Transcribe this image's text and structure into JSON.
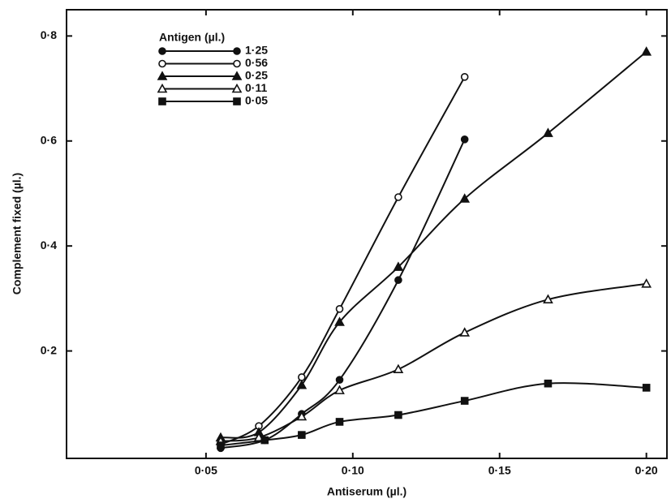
{
  "chart_data": {
    "type": "line",
    "xlabel": "Antiserum (µl.)",
    "ylabel": "Complement fixed (µl.)",
    "legend_title": "Antigen (µl.)",
    "legend": "upper left",
    "xlim": [
      0.0025,
      0.207
    ],
    "ylim": [
      0,
      0.85
    ],
    "xticks": [
      {
        "value": 0.05,
        "label": "0·05"
      },
      {
        "value": 0.1,
        "label": "0·10"
      },
      {
        "value": 0.15,
        "label": "0·15"
      },
      {
        "value": 0.2,
        "label": "0·20"
      }
    ],
    "yticks": [
      {
        "value": 0.2,
        "label": "0·2"
      },
      {
        "value": 0.4,
        "label": "0·4"
      },
      {
        "value": 0.6,
        "label": "0·6"
      },
      {
        "value": 0.8,
        "label": "0·8"
      }
    ],
    "series": [
      {
        "name": "1·25",
        "color": "#111111",
        "marker": "filled-circle",
        "x": [
          0.055,
          0.07,
          0.0826,
          0.0955,
          0.1155,
          0.1381
        ],
        "values": [
          0.015,
          0.03,
          0.08,
          0.145,
          0.335,
          0.603
        ]
      },
      {
        "name": "0·56",
        "color": "#111111",
        "marker": "open-circle",
        "x": [
          0.055,
          0.068,
          0.0826,
          0.0955,
          0.1155,
          0.1381
        ],
        "values": [
          0.022,
          0.057,
          0.15,
          0.28,
          0.493,
          0.722
        ]
      },
      {
        "name": "0·25",
        "color": "#111111",
        "marker": "filled-triangle",
        "x": [
          0.055,
          0.068,
          0.0826,
          0.0955,
          0.1155,
          0.1381,
          0.1665,
          0.2
        ],
        "values": [
          0.035,
          0.045,
          0.135,
          0.255,
          0.36,
          0.49,
          0.615,
          0.77
        ]
      },
      {
        "name": "0·11",
        "color": "#111111",
        "marker": "open-triangle",
        "x": [
          0.055,
          0.068,
          0.0826,
          0.0955,
          0.1155,
          0.1381,
          0.1665,
          0.2
        ],
        "values": [
          0.028,
          0.035,
          0.075,
          0.125,
          0.165,
          0.235,
          0.298,
          0.328
        ]
      },
      {
        "name": "0·05",
        "color": "#111111",
        "marker": "filled-square",
        "x": [
          0.055,
          0.07,
          0.0826,
          0.0955,
          0.1155,
          0.1381,
          0.1665,
          0.2
        ],
        "values": [
          0.02,
          0.03,
          0.04,
          0.065,
          0.078,
          0.105,
          0.138,
          0.13
        ]
      }
    ]
  }
}
